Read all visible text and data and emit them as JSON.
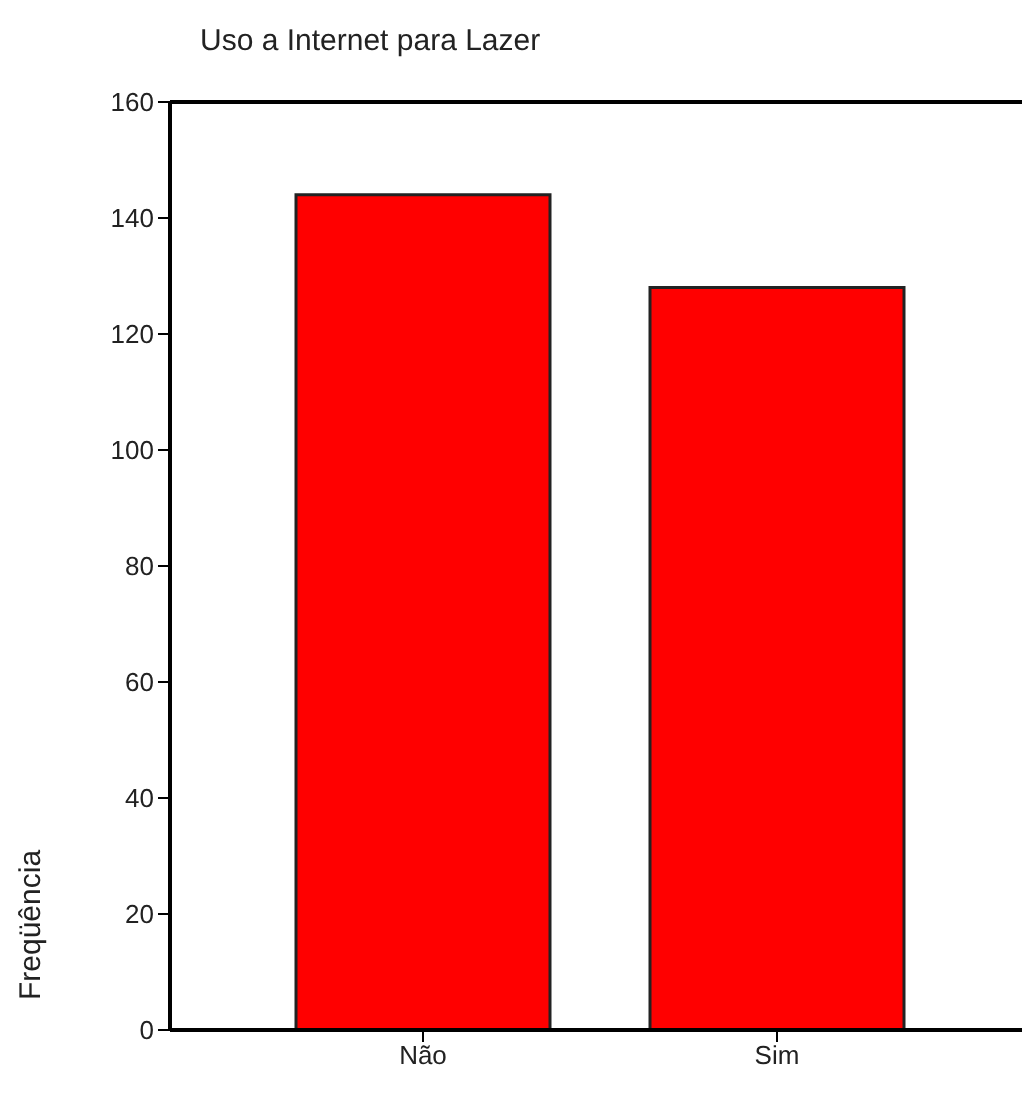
{
  "chart_data": {
    "type": "bar",
    "title": "Uso a Internet para Lazer",
    "ylabel": "Freqüência",
    "categories": [
      "Não",
      "Sim"
    ],
    "values": [
      144,
      128
    ],
    "color": "#ff0000",
    "ylim": [
      0,
      160
    ],
    "yticks": [
      0,
      20,
      40,
      60,
      80,
      100,
      120,
      140,
      160
    ],
    "grid": false
  }
}
